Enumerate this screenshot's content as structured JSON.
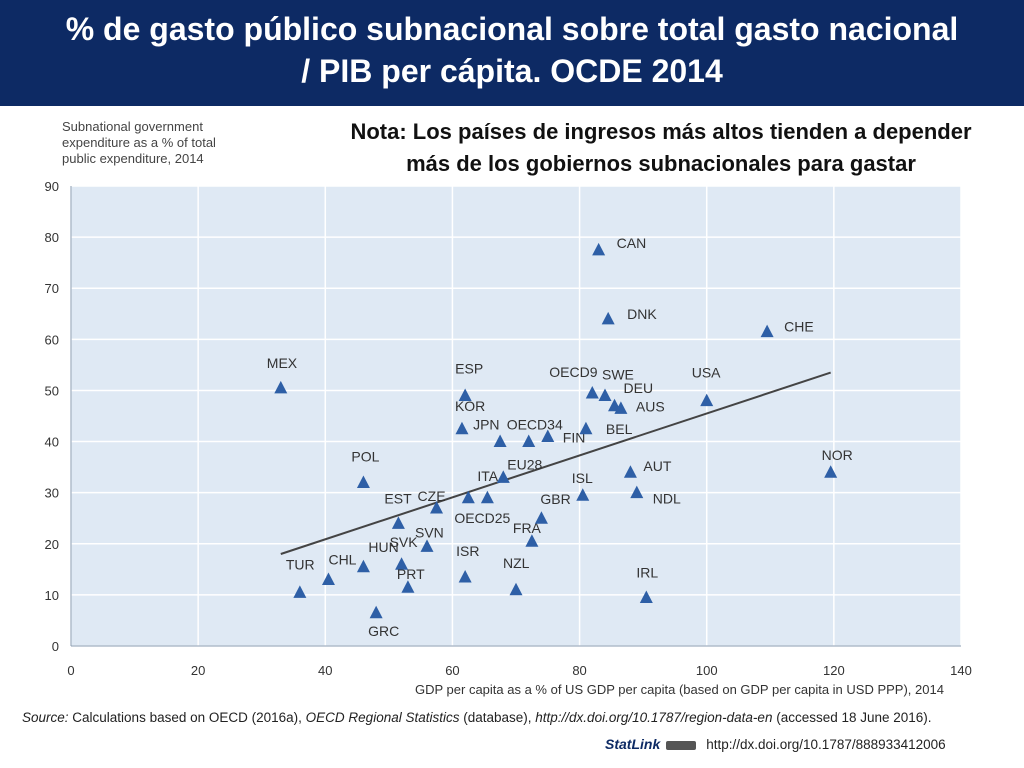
{
  "header": {
    "title_line1": "% de gasto público subnacional sobre total gasto nacional",
    "title_line2": "/ PIB per cápita. OCDE 2014",
    "bg_color": "#0d2a64"
  },
  "note": {
    "line1": "Nota: Los países de ingresos más altos tienden a depender",
    "line2": "más de los gobiernos subnacionales para gastar"
  },
  "chart_data": {
    "type": "scatter",
    "ylabel_lines": [
      "Subnational government",
      "expenditure as a % of total",
      "public expenditure, 2014"
    ],
    "xlabel": "GDP per capita as a  % of US GDP per capita (based on GDP per capita in USD PPP), 2014",
    "xlim": [
      0,
      140
    ],
    "ylim": [
      0,
      90
    ],
    "xticks": [
      0,
      20,
      40,
      60,
      80,
      100,
      120,
      140
    ],
    "yticks": [
      0,
      10,
      20,
      30,
      40,
      50,
      60,
      70,
      80,
      90
    ],
    "grid": true,
    "marker_color": "#2e5fa6",
    "plot_bg": "#dfe9f4",
    "points": [
      {
        "label": "TUR",
        "x": 36,
        "y": 10.5
      },
      {
        "label": "CHL",
        "x": 40.5,
        "y": 13
      },
      {
        "label": "MEX",
        "x": 33,
        "y": 50.5
      },
      {
        "label": "POL",
        "x": 46,
        "y": 32
      },
      {
        "label": "HUN",
        "x": 46,
        "y": 15.5
      },
      {
        "label": "GRC",
        "x": 48,
        "y": 6.5
      },
      {
        "label": "EST",
        "x": 51.5,
        "y": 24
      },
      {
        "label": "SVK",
        "x": 52,
        "y": 16
      },
      {
        "label": "PRT",
        "x": 53,
        "y": 11.5
      },
      {
        "label": "SVN",
        "x": 56,
        "y": 19.5
      },
      {
        "label": "CZE",
        "x": 57.5,
        "y": 27
      },
      {
        "label": "KOR",
        "x": 61.5,
        "y": 42.5
      },
      {
        "label": "ESP",
        "x": 62,
        "y": 49
      },
      {
        "label": "OECD25",
        "x": 62.5,
        "y": 29
      },
      {
        "label": "ISR",
        "x": 62,
        "y": 13.5
      },
      {
        "label": "ITA",
        "x": 65.5,
        "y": 29
      },
      {
        "label": "JPN",
        "x": 67.5,
        "y": 40
      },
      {
        "label": "EU28",
        "x": 68,
        "y": 33
      },
      {
        "label": "NZL",
        "x": 70,
        "y": 11
      },
      {
        "label": "OECD34",
        "x": 72,
        "y": 40
      },
      {
        "label": "FRA",
        "x": 72.5,
        "y": 20.5
      },
      {
        "label": "GBR",
        "x": 74,
        "y": 25
      },
      {
        "label": "FIN",
        "x": 75,
        "y": 41
      },
      {
        "label": "ISL",
        "x": 80.5,
        "y": 29.5
      },
      {
        "label": "BEL",
        "x": 81,
        "y": 42.5
      },
      {
        "label": "OECD9",
        "x": 82,
        "y": 49.5
      },
      {
        "label": "CAN",
        "x": 83,
        "y": 77.5
      },
      {
        "label": "SWE",
        "x": 84,
        "y": 49
      },
      {
        "label": "DNK",
        "x": 84.5,
        "y": 64
      },
      {
        "label": "DEU",
        "x": 85.5,
        "y": 47
      },
      {
        "label": "AUS",
        "x": 86.5,
        "y": 46.5
      },
      {
        "label": "AUT",
        "x": 88,
        "y": 34
      },
      {
        "label": "NDL",
        "x": 89,
        "y": 30
      },
      {
        "label": "IRL",
        "x": 90.5,
        "y": 9.5
      },
      {
        "label": "USA",
        "x": 100,
        "y": 48
      },
      {
        "label": "CHE",
        "x": 109.5,
        "y": 61.5
      },
      {
        "label": "NOR",
        "x": 119.5,
        "y": 34
      }
    ],
    "trendline": {
      "x1": 33,
      "y1": 18,
      "x2": 119.5,
      "y2": 53.5
    }
  },
  "footer": {
    "source_label": "Source:",
    "source_text": " Calculations based on OECD (2016a), ",
    "source_italic": "OECD Regional Statistics",
    "source_text2": " (database), ",
    "source_link": "http://dx.doi.org/10.1787/region-data-en",
    "source_tail": " (accessed 18 June 2016).",
    "statlink_label": "StatLink",
    "statlink_url": "http://dx.doi.org/10.1787/888933412006"
  }
}
